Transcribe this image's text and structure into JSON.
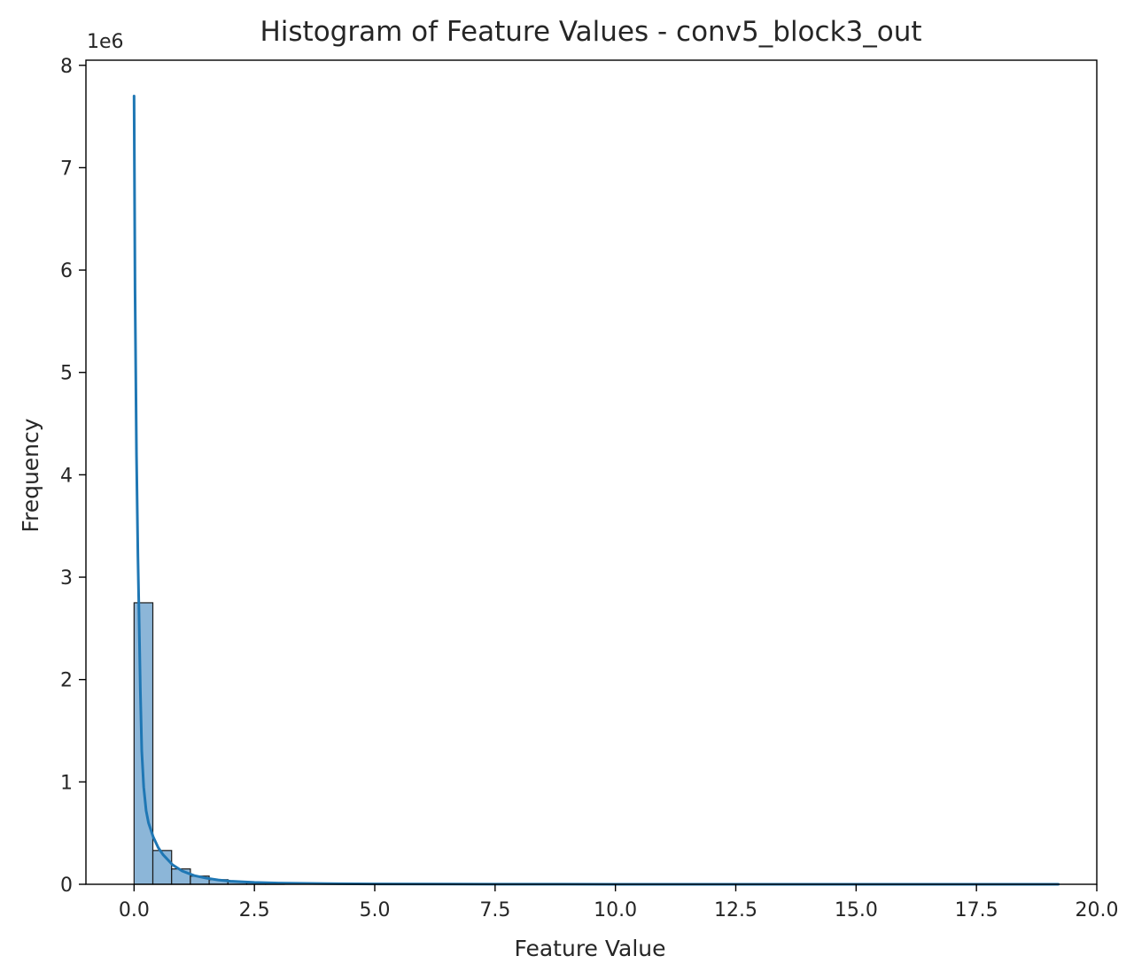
{
  "chart_data": {
    "type": "bar",
    "subtype": "histogram-with-kde",
    "title": "Histogram of Feature Values - conv5_block3_out",
    "xlabel": "Feature Value",
    "ylabel": "Frequency",
    "y_offset_label": "1e6",
    "y_multiplier": 1000000,
    "xlim": [
      -1.0,
      20.0
    ],
    "ylim": [
      0,
      8050000
    ],
    "x_ticks": [
      0.0,
      2.5,
      5.0,
      7.5,
      10.0,
      12.5,
      15.0,
      17.5,
      20.0
    ],
    "x_tick_labels": [
      "0.0",
      "2.5",
      "5.0",
      "7.5",
      "10.0",
      "12.5",
      "15.0",
      "17.5",
      "20.0"
    ],
    "y_ticks": [
      0,
      1000000,
      2000000,
      3000000,
      4000000,
      5000000,
      6000000,
      7000000,
      8000000
    ],
    "y_tick_labels": [
      "0",
      "1",
      "2",
      "3",
      "4",
      "5",
      "6",
      "7",
      "8"
    ],
    "grid": false,
    "legend": "none",
    "colors": {
      "bar_fill": "#8cb6d8",
      "bar_edge": "#1a1a1a",
      "kde_line": "#1f77b4",
      "axes": "#000000",
      "text": "#262626"
    },
    "bins": [
      {
        "x0": 0.0,
        "x1": 0.39,
        "count": 2750000
      },
      {
        "x0": 0.39,
        "x1": 0.78,
        "count": 330000
      },
      {
        "x0": 0.78,
        "x1": 1.17,
        "count": 150000
      },
      {
        "x0": 1.17,
        "x1": 1.56,
        "count": 80000
      },
      {
        "x0": 1.56,
        "x1": 1.95,
        "count": 45000
      },
      {
        "x0": 1.95,
        "x1": 2.34,
        "count": 25000
      },
      {
        "x0": 2.34,
        "x1": 2.73,
        "count": 15000
      },
      {
        "x0": 2.73,
        "x1": 3.12,
        "count": 8000
      }
    ],
    "kde": {
      "x": [
        0.0,
        0.02,
        0.05,
        0.08,
        0.1,
        0.13,
        0.16,
        0.2,
        0.25,
        0.3,
        0.4,
        0.5,
        0.6,
        0.8,
        1.0,
        1.25,
        1.5,
        1.75,
        2.0,
        2.5,
        3.0,
        4.0,
        5.0,
        7.5,
        10.0,
        15.0,
        19.2
      ],
      "y": [
        7700000,
        5800000,
        4200000,
        3200000,
        2700000,
        1900000,
        1300000,
        950000,
        720000,
        600000,
        460000,
        360000,
        290000,
        190000,
        130000,
        85000,
        60000,
        42000,
        30000,
        18000,
        12000,
        6000,
        3000,
        1000,
        500,
        200,
        100
      ]
    }
  }
}
